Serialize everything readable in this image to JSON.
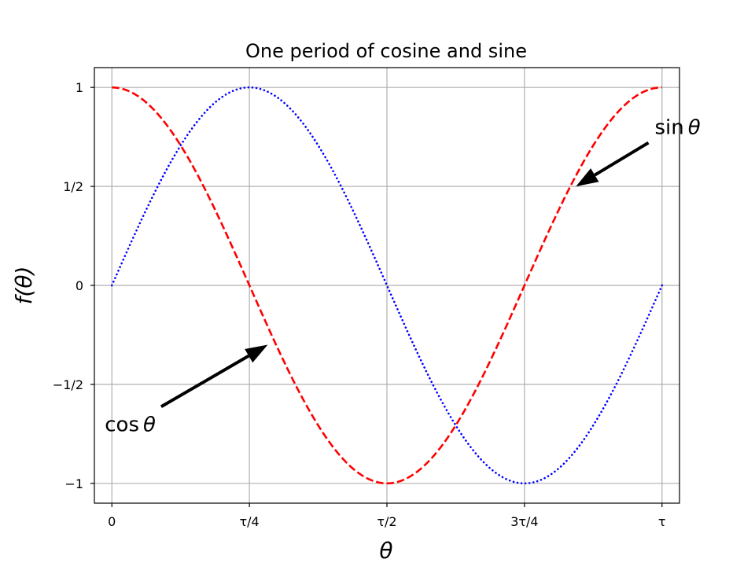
{
  "chart_data": {
    "type": "line",
    "title": "One period of cosine and sine",
    "xlabel": "θ",
    "ylabel": "f(θ)",
    "xlim": [
      -0.2,
      6.483
    ],
    "ylim": [
      -1.1,
      1.1
    ],
    "grid": true,
    "x_ticks": [
      {
        "value": 0,
        "label": "0"
      },
      {
        "value": 1.5708,
        "label": "τ/4"
      },
      {
        "value": 3.1416,
        "label": "τ/2"
      },
      {
        "value": 4.7124,
        "label": "3τ/4"
      },
      {
        "value": 6.2832,
        "label": "τ"
      }
    ],
    "y_ticks": [
      {
        "value": 1,
        "label": "1"
      },
      {
        "value": 0.5,
        "label": "1/2"
      },
      {
        "value": 0,
        "label": "0"
      },
      {
        "value": -0.5,
        "label": "−1/2"
      },
      {
        "value": -1,
        "label": "−1"
      }
    ],
    "series": [
      {
        "function": "cos",
        "color": "#ff0000",
        "style": "dashed"
      },
      {
        "function": "sin",
        "color": "#0000ff",
        "style": "dotted"
      }
    ],
    "annotations": [
      {
        "func": "sin",
        "text": "θ",
        "point": [
          5.3,
          0.5
        ],
        "text_at": [
          6.2,
          0.8
        ]
      },
      {
        "func": "cos",
        "text": "θ",
        "point": [
          1.78,
          -0.3
        ],
        "text_at": [
          0.5,
          -0.7
        ]
      }
    ]
  }
}
